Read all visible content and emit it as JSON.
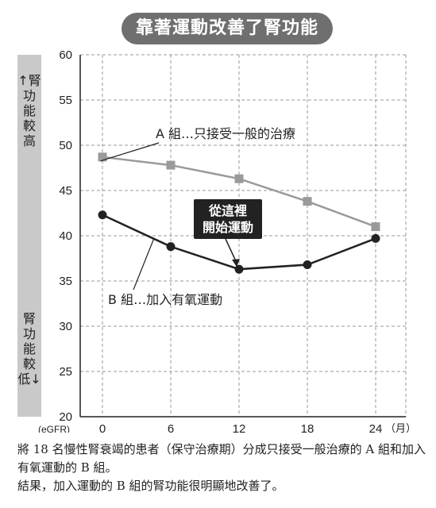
{
  "header": {
    "title": "靠著運動改善了腎功能"
  },
  "side_labels": {
    "top": "↑腎功能較高",
    "bottom": "腎功能較低↓"
  },
  "caption": {
    "line1": "將 18 名慢性腎衰竭的患者（保守治療期）分成只接受一般治療的 A 組和加入有氧運動的 B 組。",
    "line2": "結果，加入運動的 B 組的腎功能很明顯地改善了。"
  },
  "chart_data": {
    "type": "line",
    "title": "靠著運動改善了腎功能",
    "ylabel": "(eGFR)",
    "xlabel": "（月）",
    "x": [
      0,
      6,
      12,
      18,
      24
    ],
    "ylim": [
      20,
      60
    ],
    "yticks": [
      20,
      25,
      30,
      35,
      40,
      45,
      50,
      55,
      60
    ],
    "grid": true,
    "series": [
      {
        "name": "A 組…只接受一般的治療",
        "marker": "square",
        "color": "#9a9a9a",
        "values": [
          48.7,
          47.8,
          46.3,
          43.8,
          41.0
        ]
      },
      {
        "name": "B 組…加入有氧運動",
        "marker": "circle",
        "color": "#222222",
        "values": [
          42.3,
          38.8,
          36.3,
          36.8,
          39.7
        ]
      }
    ],
    "annotations": [
      {
        "text": "從這裡開始運動",
        "lines": [
          "從這裡",
          "開始運動"
        ],
        "x": 12
      }
    ]
  }
}
